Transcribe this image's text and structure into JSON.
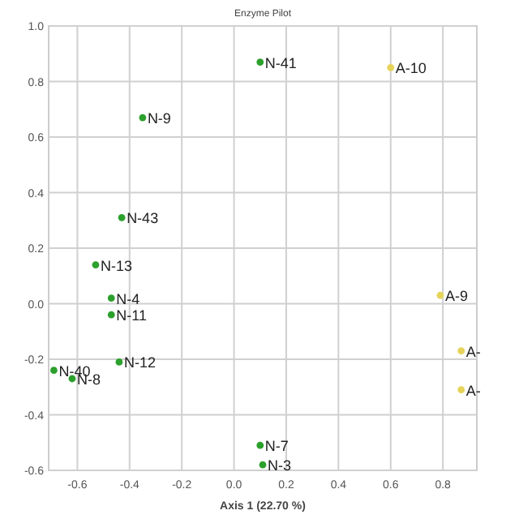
{
  "chart_data": {
    "type": "scatter",
    "title": "Enzyme Pilot",
    "xlabel": "Axis 1 (22.70 %)",
    "xlim": [
      -0.71,
      0.93
    ],
    "ylim": [
      -0.6,
      1.0
    ],
    "xticks": [
      {
        "value": -0.6,
        "label": "-0.6"
      },
      {
        "value": -0.4,
        "label": "-0.4"
      },
      {
        "value": -0.2,
        "label": "-0.2"
      },
      {
        "value": 0,
        "label": "0.0"
      },
      {
        "value": 0.2,
        "label": "0.2"
      },
      {
        "value": 0.4,
        "label": "0.4"
      },
      {
        "value": 0.6,
        "label": "0.6"
      },
      {
        "value": 0.8,
        "label": "0.8"
      }
    ],
    "yticks": [
      {
        "value": -0.6,
        "label": "-0.6"
      },
      {
        "value": -0.4,
        "label": "-0.4"
      },
      {
        "value": -0.2,
        "label": "-0.2"
      },
      {
        "value": 0,
        "label": "0.0"
      },
      {
        "value": 0.2,
        "label": "0.2"
      },
      {
        "value": 0.4,
        "label": "0.4"
      },
      {
        "value": 0.6,
        "label": "0.6"
      },
      {
        "value": 0.8,
        "label": "0.8"
      },
      {
        "value": 1.0,
        "label": "1.0"
      }
    ],
    "grid": true,
    "marker": "circle",
    "series": [
      {
        "color": "#2ca02c",
        "x": [
          0.1,
          -0.35,
          -0.43,
          -0.53,
          -0.47,
          -0.47,
          -0.44,
          -0.69,
          -0.62,
          0.1,
          0.11
        ],
        "values": [
          0.87,
          0.67,
          0.31,
          0.14,
          0.02,
          -0.04,
          -0.21,
          -0.24,
          -0.27,
          -0.51,
          -0.58
        ]
      },
      {
        "color": "#e6d45a",
        "x": [
          0.6,
          0.79,
          0.87,
          0.87
        ],
        "values": [
          0.85,
          0.03,
          -0.17,
          -0.31
        ]
      }
    ],
    "annotations": [
      {
        "text": "N-41",
        "x": 0.1,
        "y": 0.87
      },
      {
        "text": "N-9",
        "x": -0.35,
        "y": 0.67
      },
      {
        "text": "N-43",
        "x": -0.43,
        "y": 0.31
      },
      {
        "text": "N-13",
        "x": -0.53,
        "y": 0.14
      },
      {
        "text": "N-4",
        "x": -0.47,
        "y": 0.02
      },
      {
        "text": "N-11",
        "x": -0.47,
        "y": -0.04
      },
      {
        "text": "N-12",
        "x": -0.44,
        "y": -0.21
      },
      {
        "text": "N-40",
        "x": -0.69,
        "y": -0.24
      },
      {
        "text": "N-8",
        "x": -0.62,
        "y": -0.27
      },
      {
        "text": "N-7",
        "x": 0.1,
        "y": -0.51
      },
      {
        "text": "N-3",
        "x": 0.11,
        "y": -0.58
      },
      {
        "text": "A-10",
        "x": 0.6,
        "y": 0.85
      },
      {
        "text": "A-9",
        "x": 0.79,
        "y": 0.03
      },
      {
        "text": "A-",
        "x": 0.87,
        "y": -0.17
      },
      {
        "text": "A-",
        "x": 0.87,
        "y": -0.31
      }
    ]
  }
}
